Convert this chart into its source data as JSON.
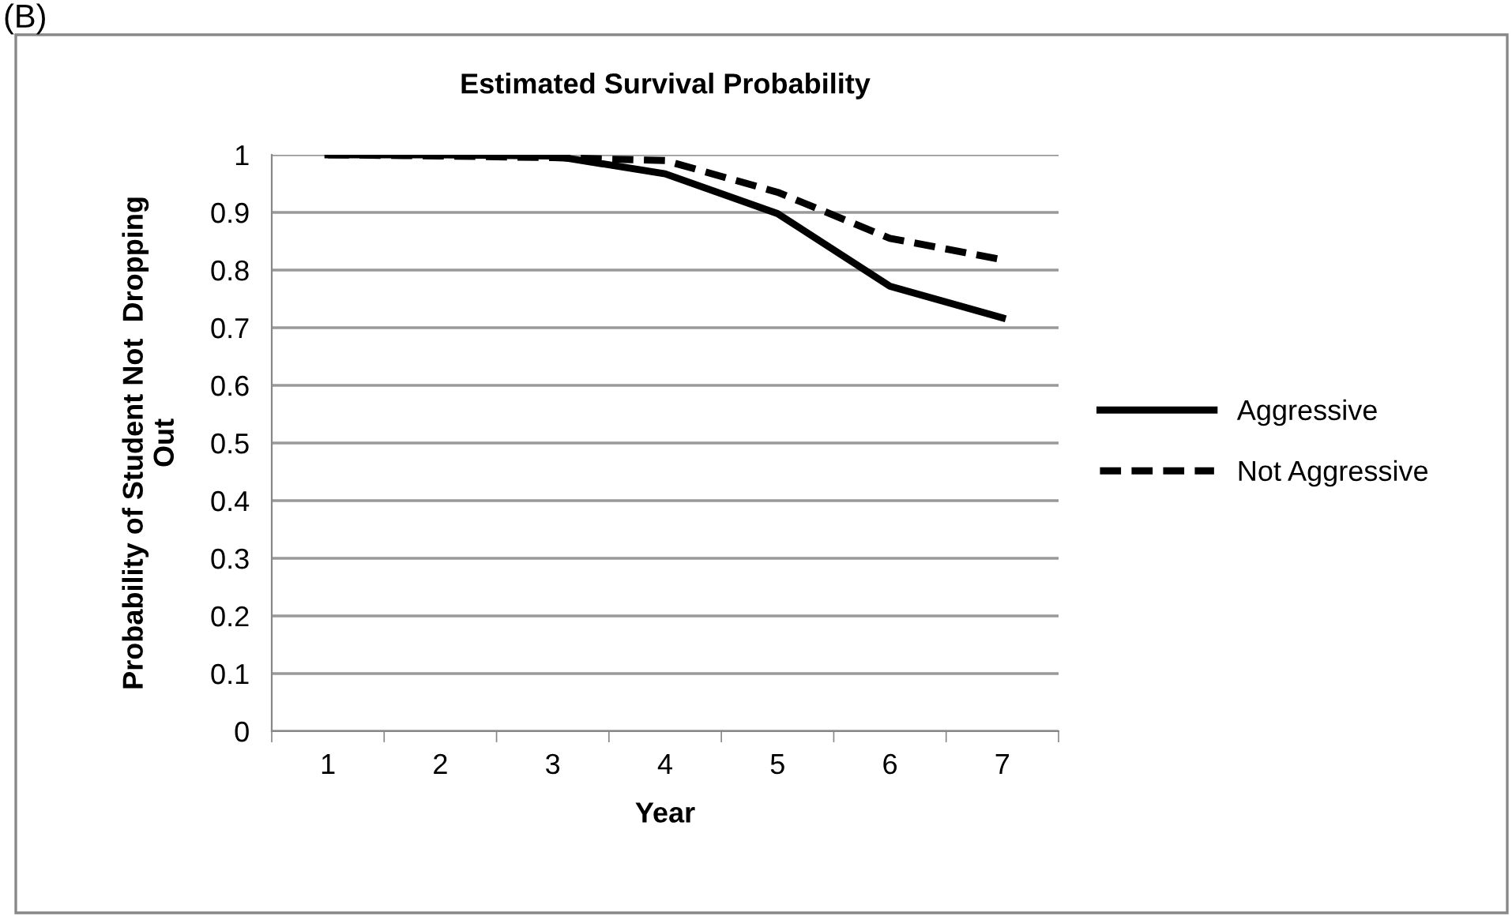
{
  "chart_data": {
    "type": "line",
    "title": "Estimated Survival Probability",
    "xlabel": "Year",
    "ylabel": "Probability of Student Not  Dropping\nOut",
    "annotations": [
      "(B)"
    ],
    "categories": [
      "1",
      "2",
      "3",
      "4",
      "5",
      "6",
      "7"
    ],
    "series": [
      {
        "name": "Aggressive",
        "color": "#000000",
        "line_style": "solid",
        "values": [
          1.0,
          1.0,
          0.998,
          0.967,
          0.898,
          0.772,
          0.717
        ]
      },
      {
        "name": "Not Aggressive",
        "color": "#000000",
        "line_style": "dashed",
        "values": [
          1.0,
          0.998,
          0.995,
          0.99,
          0.935,
          0.855,
          0.818
        ]
      }
    ],
    "ylim": [
      0,
      1
    ],
    "yticks": [
      0,
      0.1,
      0.2,
      0.3,
      0.4,
      0.5,
      0.6,
      0.7,
      0.8,
      0.9,
      1
    ],
    "grid": "y",
    "legend": "right",
    "marker": "none"
  }
}
